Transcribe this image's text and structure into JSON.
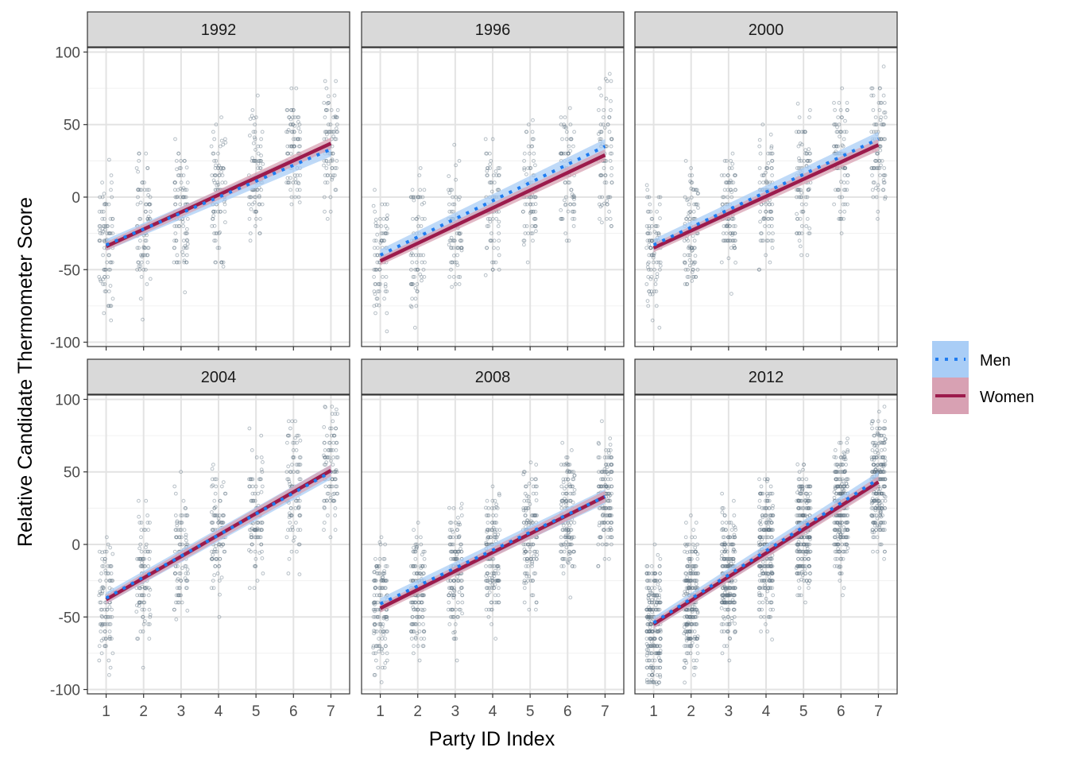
{
  "chart_data": {
    "type": "scatter",
    "xlabel": "Party ID Index",
    "ylabel": "Relative Candidate Thermometer Score",
    "x_ticks": [
      1,
      2,
      3,
      4,
      5,
      6,
      7
    ],
    "y_ticks": [
      -100,
      -50,
      0,
      50,
      100
    ],
    "xlim": [
      0.5,
      7.5
    ],
    "ylim": [
      -103,
      103
    ],
    "grid": true,
    "legend_position": "right",
    "colors": {
      "points": "#5f7383",
      "men": "#1e7bf0",
      "men_band": "#a9cdf6",
      "women": "#9c1b4c",
      "women_band": "#d8a1b3"
    },
    "panels": [
      {
        "title": "1992",
        "men_fit": {
          "x": [
            1,
            7
          ],
          "y": [
            -33,
            33
          ]
        },
        "women_fit": {
          "x": [
            1,
            7
          ],
          "y": [
            -34,
            37
          ]
        }
      },
      {
        "title": "1996",
        "men_fit": {
          "x": [
            1,
            7
          ],
          "y": [
            -40,
            35
          ]
        },
        "women_fit": {
          "x": [
            1,
            7
          ],
          "y": [
            -44,
            29
          ]
        }
      },
      {
        "title": "2000",
        "men_fit": {
          "x": [
            1,
            7
          ],
          "y": [
            -33,
            40
          ]
        },
        "women_fit": {
          "x": [
            1,
            7
          ],
          "y": [
            -35,
            36
          ]
        }
      },
      {
        "title": "2004",
        "men_fit": {
          "x": [
            1,
            7
          ],
          "y": [
            -37,
            50
          ]
        },
        "women_fit": {
          "x": [
            1,
            7
          ],
          "y": [
            -38,
            51
          ]
        }
      },
      {
        "title": "2008",
        "men_fit": {
          "x": [
            1,
            7
          ],
          "y": [
            -41,
            33
          ]
        },
        "women_fit": {
          "x": [
            1,
            7
          ],
          "y": [
            -44,
            33
          ]
        }
      },
      {
        "title": "2012",
        "men_fit": {
          "x": [
            1,
            7
          ],
          "y": [
            -54,
            45
          ]
        },
        "women_fit": {
          "x": [
            1,
            7
          ],
          "y": [
            -55,
            43
          ]
        }
      }
    ],
    "series": [
      {
        "name": "Men",
        "line_style": "dotted"
      },
      {
        "name": "Women",
        "line_style": "solid"
      }
    ]
  }
}
